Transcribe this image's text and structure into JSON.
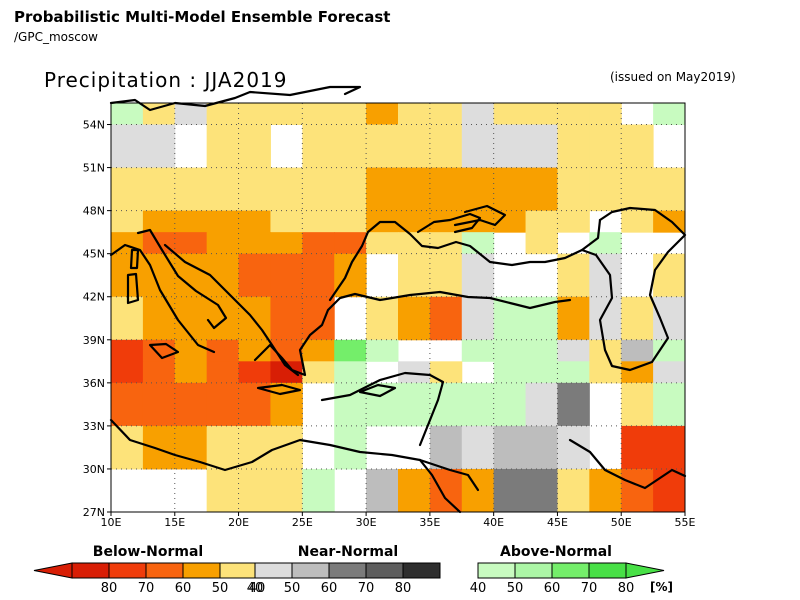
{
  "header": {
    "title": "Probabilistic Multi-Model Ensemble Forecast",
    "subtitle": "/GPC_moscow"
  },
  "plot": {
    "title": "Precipitation : JJA2019",
    "issued": "(issued on May2019)"
  },
  "colors": {
    "below": [
      "#d81e05",
      "#f03c0a",
      "#f8640f",
      "#f8a000",
      "#fde37a"
    ],
    "near": [
      "#dddddd",
      "#bdbdbd",
      "#7b7b7b",
      "#5e5e5e",
      "#2e2e2e"
    ],
    "above": [
      "#c8fbc0",
      "#acf6a6",
      "#74ee6a",
      "#48e046",
      "#29a329"
    ]
  },
  "map": {
    "lon_range": [
      10,
      55
    ],
    "lat_range": [
      27,
      55.5
    ],
    "lon_ticks": [
      "10E",
      "15E",
      "20E",
      "25E",
      "30E",
      "35E",
      "40E",
      "45E",
      "50E",
      "55E"
    ],
    "lat_ticks": [
      "27N",
      "30N",
      "33N",
      "36N",
      "39N",
      "42N",
      "45N",
      "48N",
      "51N",
      "54N"
    ],
    "grid": "dotted"
  },
  "legend": {
    "below_title": "Below-Normal",
    "near_title": "Near-Normal",
    "above_title": "Above-Normal",
    "below_ticks": [
      "80",
      "70",
      "60",
      "50",
      "40"
    ],
    "near_ticks": [
      "40",
      "50",
      "60",
      "70",
      "80"
    ],
    "above_ticks": [
      "40",
      "50",
      "60",
      "70",
      "80"
    ],
    "unit": "[%]"
  }
}
